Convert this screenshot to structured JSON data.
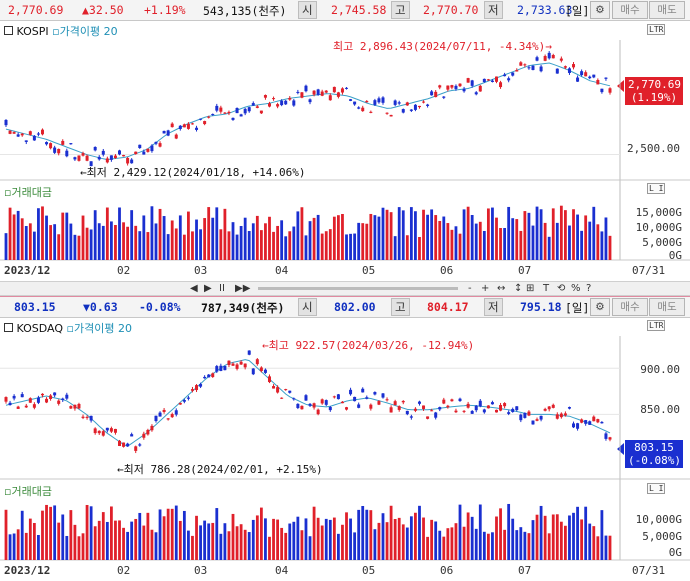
{
  "kospi": {
    "quote": {
      "price": "2,770.69",
      "change": "▲32.50",
      "pct": "+1.19%",
      "volume": "543,135(천주)",
      "open_label": "시",
      "open": "2,745.58",
      "high_label": "고",
      "high": "2,770.70",
      "low_label": "저",
      "low": "2,733.63",
      "period": "[일]",
      "buy": "매수",
      "sell": "매도"
    },
    "legend": {
      "index_name": "KOSPI",
      "indicator": "가격이평",
      "period": "20"
    },
    "max_note": "최고 2,896.43(2024/07/11, -4.34%)",
    "min_note": "최저 2,429.12(2024/01/18, +14.06%)",
    "price_box": "2,770.69",
    "pct_box": "(1.19%)",
    "y_ticks": [
      "2,500.00"
    ],
    "volume_title": "거래대금",
    "volume_ticks": [
      "15,000G",
      "10,000G",
      "5,000G",
      "0G"
    ],
    "x_labels": [
      "2023/12",
      "02",
      "03",
      "04",
      "05",
      "06",
      "07",
      "07/31"
    ],
    "ltr": "LTR"
  },
  "toolbar": {
    "items": [
      "◀",
      "▶",
      "II",
      "▶▶",
      "-",
      "+",
      "↔",
      "↕",
      "⊞",
      "T",
      "⟲",
      "%",
      "?"
    ]
  },
  "kosdaq": {
    "quote": {
      "price": "803.15",
      "change": "▼0.63",
      "pct": "-0.08%",
      "volume": "787,349(천주)",
      "open_label": "시",
      "open": "802.00",
      "high_label": "고",
      "high": "804.17",
      "low_label": "저",
      "low": "795.18",
      "period": "[일]",
      "buy": "매수",
      "sell": "매도"
    },
    "legend": {
      "index_name": "KOSDAQ",
      "indicator": "가격이평",
      "period": "20"
    },
    "max_note": "최고 922.57(2024/03/26, -12.94%)",
    "min_note": "최저 786.28(2024/02/01, +2.15%)",
    "price_box": "803.15",
    "pct_box": "(-0.08%)",
    "y_ticks": [
      "900.00",
      "850.00"
    ],
    "volume_title": "거래대금",
    "volume_ticks": [
      "10,000G",
      "5,000G",
      "0G"
    ],
    "x_labels": [
      "2023/12",
      "02",
      "03",
      "04",
      "05",
      "06",
      "07",
      "07/31"
    ],
    "ltr": "LTR"
  },
  "colors": {
    "up": "#e0202a",
    "down": "#1a2fd0",
    "ma": "#3aa0c8",
    "price_box_up": "#e0202a",
    "price_box_down": "#1a2fd0",
    "volume_title": "#3a8a3a"
  },
  "chart_data": [
    {
      "type": "candlestick",
      "title": "KOSPI",
      "series": [
        {
          "name": "가격이평 20",
          "values": [
            2600,
            2580,
            2560,
            2530,
            2500,
            2480,
            2490,
            2520,
            2580,
            2620,
            2650,
            2660,
            2690,
            2700,
            2720,
            2730,
            2740,
            2730,
            2700,
            2680,
            2700,
            2720,
            2750,
            2760,
            2790,
            2820,
            2850,
            2860,
            2830,
            2790,
            2770
          ]
        }
      ],
      "ylim": [
        2400,
        2950
      ],
      "y_ticks": [
        2500
      ],
      "last": 2770.69,
      "max": 2896.43,
      "min": 2429.12
    },
    {
      "type": "candlestick",
      "title": "KOSDAQ",
      "series": [
        {
          "name": "가격이평 20",
          "values": [
            860,
            865,
            870,
            865,
            850,
            830,
            815,
            830,
            850,
            870,
            890,
            905,
            910,
            890,
            870,
            860,
            858,
            865,
            868,
            862,
            855,
            855,
            858,
            860,
            858,
            855,
            850,
            850,
            848,
            840,
            830
          ]
        }
      ],
      "ylim": [
        780,
        935
      ],
      "y_ticks": [
        900,
        850
      ],
      "last": 803.15,
      "max": 922.57,
      "min": 786.28
    }
  ]
}
